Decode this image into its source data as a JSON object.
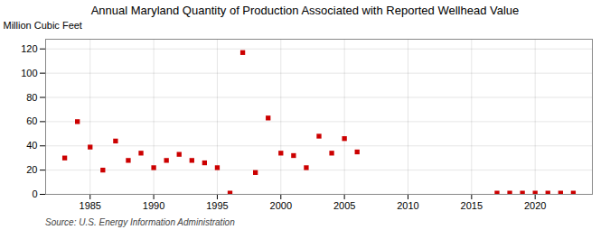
{
  "chart_data": {
    "type": "scatter",
    "title": "Annual Maryland Quantity of Production Associated with Reported Wellhead Value",
    "ylabel": "Million Cubic Feet",
    "caption": "Source: U.S. Energy Information Administration",
    "color": "#cc0000",
    "marker": "square",
    "grid": true,
    "xlim": [
      1981.5,
      2024.5
    ],
    "ylim": [
      0,
      128
    ],
    "xticks": [
      1985,
      1990,
      1995,
      2000,
      2005,
      2010,
      2015,
      2020
    ],
    "yticks": [
      0,
      20,
      40,
      60,
      80,
      100,
      120
    ],
    "x": [
      1983,
      1984,
      1985,
      1986,
      1987,
      1988,
      1989,
      1990,
      1991,
      1992,
      1993,
      1994,
      1995,
      1996,
      1997,
      1998,
      1999,
      2000,
      2001,
      2002,
      2003,
      2004,
      2005,
      2006,
      2017,
      2018,
      2019,
      2020,
      2021,
      2022,
      2023
    ],
    "values": [
      30,
      60,
      39,
      20,
      44,
      28,
      34,
      22,
      28,
      33,
      28,
      26,
      22,
      1,
      117,
      18,
      63,
      34,
      32,
      22,
      48,
      34,
      46,
      35,
      1,
      1,
      1,
      1,
      1,
      1,
      1
    ]
  }
}
